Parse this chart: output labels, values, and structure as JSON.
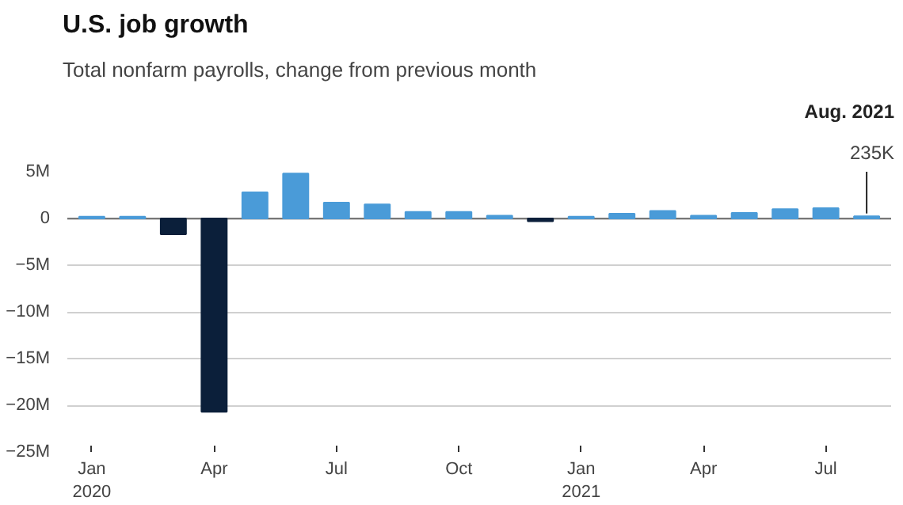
{
  "chart_data": {
    "type": "bar",
    "title": "U.S. job growth",
    "subtitle": "Total nonfarm payrolls, change from previous month",
    "categories": [
      "Jan\n2020",
      null,
      null,
      "Apr",
      null,
      null,
      "Jul",
      null,
      null,
      "Oct",
      null,
      null,
      "Jan\n2021",
      null,
      null,
      "Apr",
      null,
      null,
      "Jul",
      null
    ],
    "values": [
      0.2,
      0.2,
      -1.7,
      -20.7,
      2.8,
      4.8,
      1.7,
      1.5,
      0.7,
      0.7,
      0.3,
      -0.3,
      0.2,
      0.5,
      0.8,
      0.3,
      0.6,
      1.0,
      1.1,
      0.235
    ],
    "colors": [
      "#4a9bd8",
      "#4a9bd8",
      "#0b1f3a",
      "#0b1f3a",
      "#4a9bd8",
      "#4a9bd8",
      "#4a9bd8",
      "#4a9bd8",
      "#4a9bd8",
      "#4a9bd8",
      "#4a9bd8",
      "#0b1f3a",
      "#4a9bd8",
      "#4a9bd8",
      "#4a9bd8",
      "#4a9bd8",
      "#4a9bd8",
      "#4a9bd8",
      "#4a9bd8",
      "#4a9bd8"
    ],
    "annotations": [
      "Aug. 2021",
      {
        "text": "235K",
        "y": 0.235
      }
    ],
    "ylim": [
      -25,
      5
    ],
    "yticks": [
      {
        "value": 5,
        "label": "5M"
      },
      0,
      {
        "value": -5,
        "label": "−5M"
      },
      {
        "value": -10,
        "label": "−10M"
      },
      {
        "value": -15,
        "label": "−15M"
      },
      {
        "value": -20,
        "label": "−20M"
      },
      {
        "value": -25,
        "label": "−25M"
      }
    ],
    "grid": "y"
  }
}
